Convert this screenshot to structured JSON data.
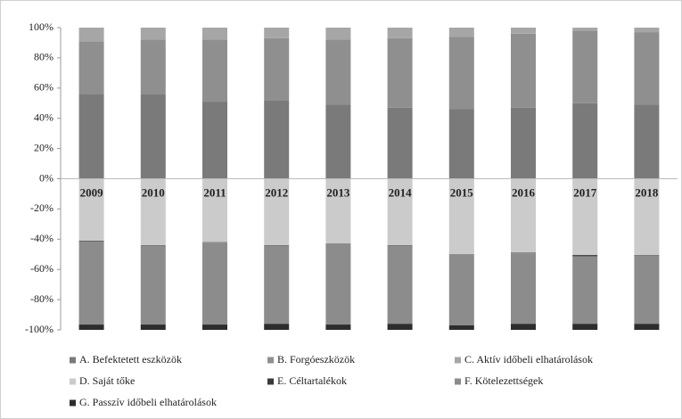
{
  "chart_data": {
    "type": "stacked-bar",
    "categories": [
      "2009",
      "2010",
      "2011",
      "2012",
      "2013",
      "2014",
      "2015",
      "2016",
      "2017",
      "2018"
    ],
    "series": [
      {
        "name": "A. Befektetett eszközök",
        "color": "#7a7a7a",
        "values": [
          56,
          56,
          51,
          52,
          49,
          47,
          46,
          47,
          50,
          49
        ]
      },
      {
        "name": "B. Forgóeszközök",
        "color": "#8f8f8f",
        "values": [
          35,
          36,
          41,
          41,
          43,
          46,
          48,
          49,
          48,
          48
        ]
      },
      {
        "name": "C. Aktív időbeli elhatárolások",
        "color": "#a6a6a6",
        "values": [
          9,
          8,
          8,
          7,
          8,
          7,
          6,
          4,
          2,
          3
        ]
      },
      {
        "name": "D. Saját tőke",
        "color": "#cbcbcb",
        "values": [
          -41,
          -44,
          -42,
          -44,
          -43,
          -44,
          -50,
          -49,
          -50.5,
          -50.5
        ]
      },
      {
        "name": "E. Céltartalékok",
        "color": "#3a3a3a",
        "values": [
          -0.3,
          -0.3,
          -0.3,
          -0.3,
          -0.3,
          -0.3,
          -0.3,
          -0.3,
          -0.8,
          -0.3
        ]
      },
      {
        "name": "F. Kötelezettségek",
        "color": "#8c8c8c",
        "values": [
          -55.2,
          -52.2,
          -54.2,
          -51.7,
          -53.2,
          -51.7,
          -46.7,
          -46.7,
          -44.7,
          -45.2
        ]
      },
      {
        "name": "G. Passzív időbeli elhatárolások",
        "color": "#2d2d2d",
        "values": [
          -3.5,
          -3.5,
          -3.5,
          -4,
          -3.5,
          -4,
          -3,
          -4,
          -4,
          -4
        ]
      }
    ],
    "ylim": [
      -100,
      100
    ],
    "yticks": [
      {
        "value": -100,
        "label": "-100%"
      },
      {
        "value": -80,
        "label": "-80%"
      },
      {
        "value": -60,
        "label": "-60%"
      },
      {
        "value": -40,
        "label": "-40%"
      },
      {
        "value": -20,
        "label": "-20%"
      },
      {
        "value": 0,
        "label": "0%"
      },
      {
        "value": 20,
        "label": "20%"
      },
      {
        "value": 40,
        "label": "40%"
      },
      {
        "value": 60,
        "label": "60%"
      },
      {
        "value": 80,
        "label": "80%"
      },
      {
        "value": 100,
        "label": "100%"
      }
    ],
    "legend": "bottom"
  }
}
